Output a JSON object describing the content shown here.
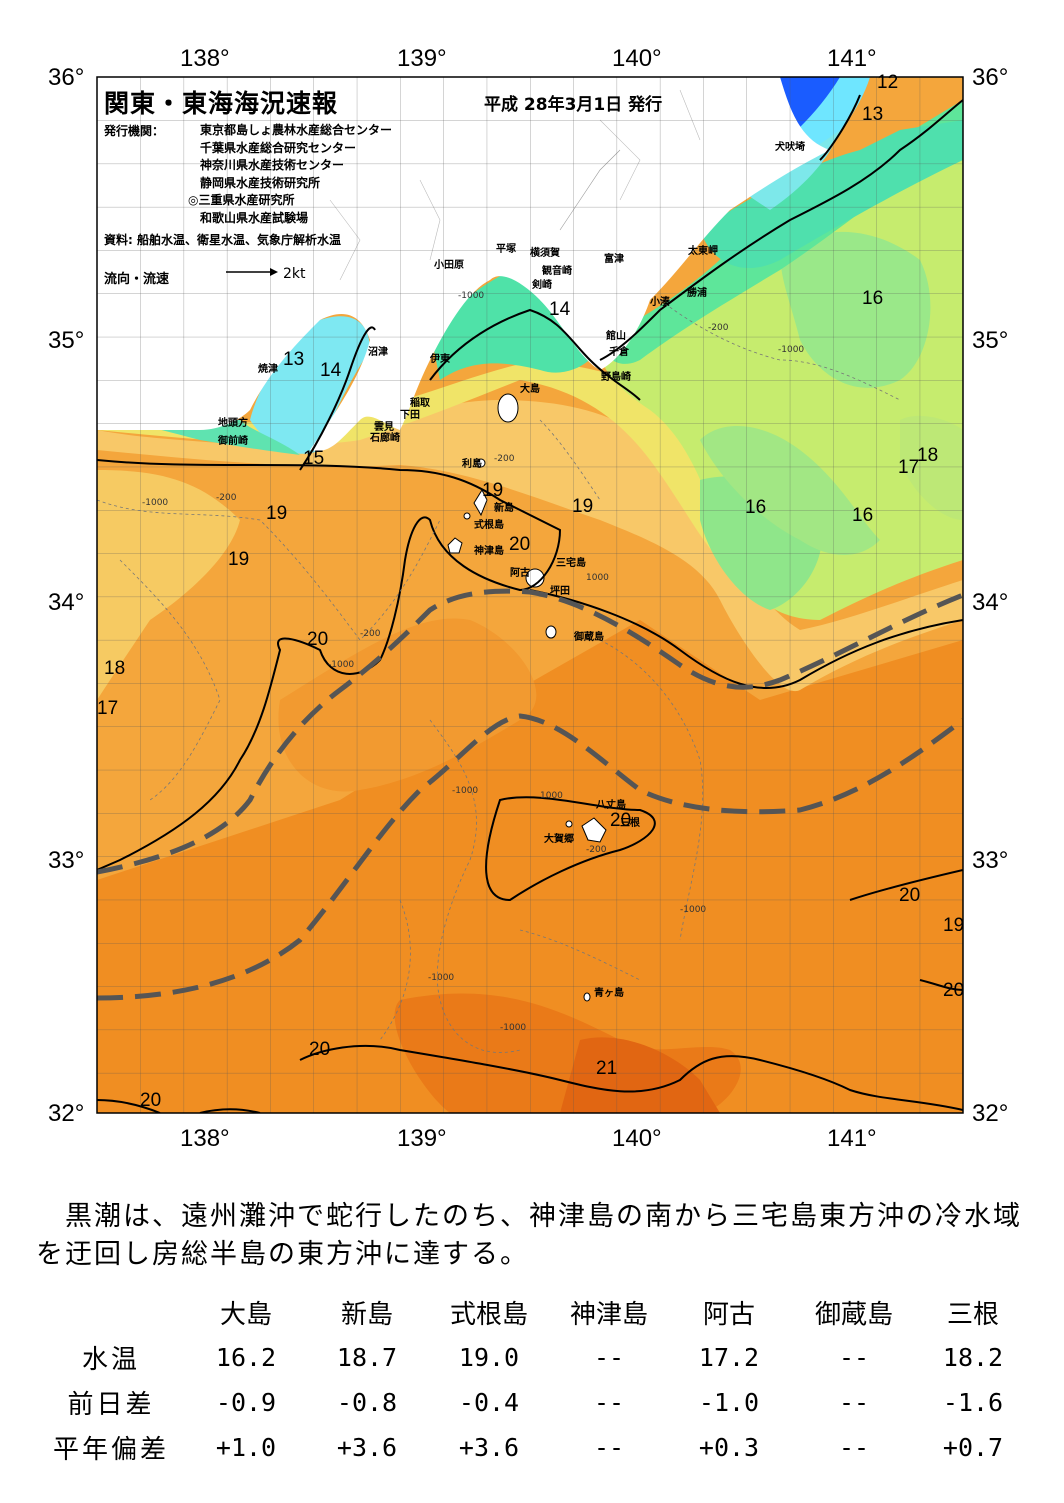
{
  "map": {
    "lon_ticks": [
      "138°",
      "139°",
      "140°",
      "141°"
    ],
    "lat_ticks": [
      "36°",
      "35°",
      "34°",
      "33°",
      "32°"
    ],
    "lon_range": [
      137.5,
      141.5
    ],
    "lat_range": [
      32,
      36
    ],
    "water_temperature_colors": {
      "13": "#1a5cff",
      "14": "#6fe6ff",
      "15": "#55e3b4",
      "16": "#8fe68a",
      "17": "#c8ef70",
      "18": "#eeef6a",
      "19": "#f8d46a",
      "20": "#f6b34a",
      "21": "#ee8a1e",
      "22": "#e56d14"
    },
    "isotherm_labels": [
      "12",
      "13",
      "13",
      "14",
      "14",
      "15",
      "16",
      "16",
      "16",
      "17",
      "18",
      "17",
      "18",
      "19",
      "19",
      "19",
      "19",
      "20",
      "20",
      "20",
      "20",
      "20",
      "20",
      "19",
      "20",
      "21"
    ],
    "depth_labels": [
      "-1000",
      "-200",
      "-1000",
      "-200",
      "-1000",
      "-200",
      "-1000",
      "-200",
      "-1000",
      "-1000",
      "-1000",
      "-1000",
      "-200",
      "1000",
      "1000"
    ],
    "place_names": [
      "犬吠埼",
      "太東岬",
      "勝浦",
      "小湊",
      "富津",
      "館山",
      "千倉",
      "野島崎",
      "横須賀",
      "観音崎",
      "剣崎",
      "平塚",
      "小田原",
      "伊東",
      "稲取",
      "下田",
      "雲見",
      "石廊崎",
      "沼津",
      "焼津",
      "地頭方",
      "御前崎",
      "大島",
      "利島",
      "新島",
      "式根島",
      "神津島",
      "三宅島",
      "阿古",
      "坪田",
      "御蔵島",
      "八丈島",
      "大賀郷",
      "三根",
      "青ヶ島"
    ]
  },
  "header": {
    "title": "関東・東海海況速報",
    "date": "平成 28年3月1日 発行",
    "issuer_label": "発行機関：",
    "issuers": [
      "東京都島しょ農林水産総合センター",
      "千葉県水産総合研究センター",
      "神奈川県水産技術センター",
      "静岡県水産技術研究所",
      "◎三重県水産研究所",
      "和歌山県水産試験場"
    ],
    "source": "資料: 船舶水温、衛星水温、気象庁解析水温",
    "flow_label": "流向・流速",
    "flow_unit": "2kt"
  },
  "summary": "黒潮は、遠州灘沖で蛇行したのち、神津島の南から三宅島東方沖の冷水域を迂回し房総半島の東方沖に達する。",
  "observations": {
    "stations": [
      "大島",
      "新島",
      "式根島",
      "神津島",
      "阿古",
      "御蔵島",
      "三根"
    ],
    "rows": [
      {
        "label": "水温",
        "values": [
          "16.2",
          "18.7",
          "19.0",
          "--",
          "17.2",
          "--",
          "18.2"
        ]
      },
      {
        "label": "前日差",
        "values": [
          "-0.9",
          "-0.8",
          "-0.4",
          "--",
          "-1.0",
          "--",
          "-1.6"
        ]
      },
      {
        "label": "平年偏差",
        "values": [
          "+1.0",
          "+3.6",
          "+3.6",
          "--",
          "+0.3",
          "--",
          "+0.7"
        ]
      }
    ]
  }
}
